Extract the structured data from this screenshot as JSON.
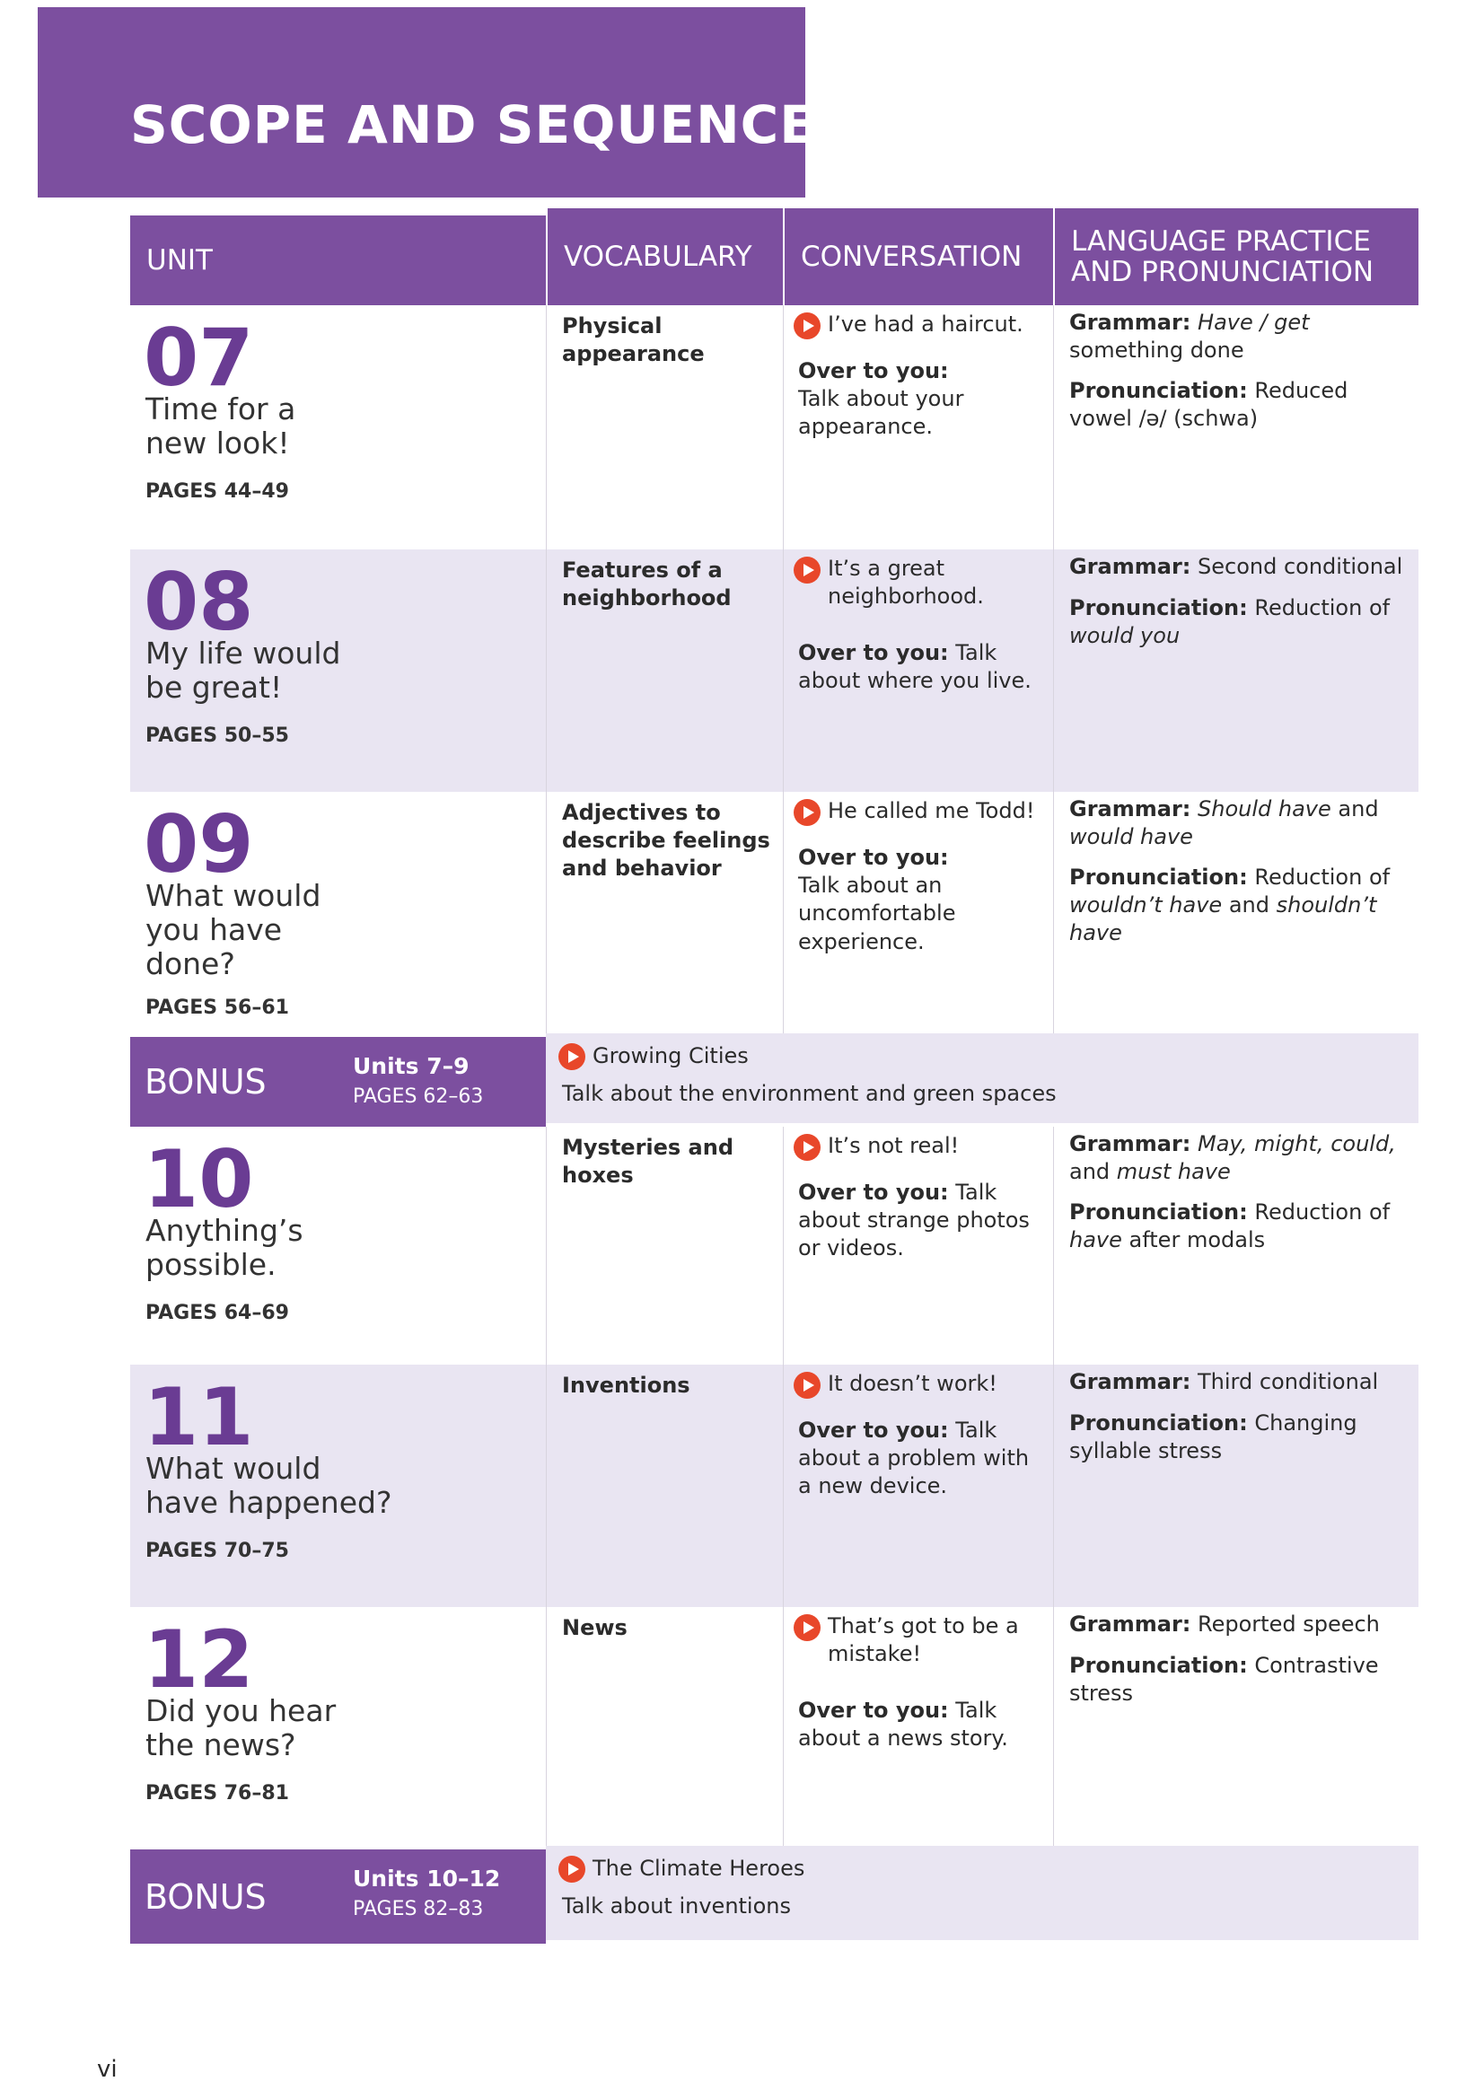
{
  "header": {
    "title": "SCOPE AND SEQUENCE"
  },
  "table": {
    "columns": [
      "UNIT",
      "VOCABULARY",
      "CONVERSATION",
      "LANGUAGE PRACTICE\nAND PRONUNCIATION"
    ],
    "rows": [
      {
        "number": "07",
        "title": "Time for a\nnew look!",
        "pages": "PAGES 44–49",
        "vocabulary": "Physical\nappearance",
        "conversation": "I’ve had a haircut.",
        "over_to_you": [
          "Over to you:",
          "Talk about your appearance."
        ],
        "grammar": [
          "Grammar:",
          "Have / get",
          "something done"
        ],
        "pronunciation": [
          "Pronunciation:",
          "Reduced vowel /ə/ (schwa)"
        ]
      },
      {
        "number": "08",
        "title": "My life would\nbe great!",
        "pages": "PAGES 50–55",
        "vocabulary": "Features of a\nneighborhood",
        "conversation": "It’s a great neighborhood.",
        "over_to_you": [
          "Over to you:",
          "Talk about where you live."
        ],
        "grammar": [
          "Grammar:",
          "Second conditional"
        ],
        "pronunciation": [
          "Pronunciation:",
          "Reduction of",
          "would you"
        ]
      },
      {
        "number": "09",
        "title": "What would\nyou have\ndone?",
        "pages": "PAGES 56–61",
        "vocabulary": "Adjectives to\ndescribe feelings\nand behavior",
        "conversation": "He called me Todd!",
        "over_to_you": [
          "Over to you:",
          "Talk about an uncomfortable experience."
        ],
        "grammar": [
          "Grammar:",
          "Should have",
          "and",
          "would have"
        ],
        "pronunciation": [
          "Pronunciation:",
          "Reduction of",
          "wouldn’t have",
          "and",
          "shouldn’t have"
        ]
      },
      {
        "bonus": "BONUS",
        "units": "Units 7–9",
        "pages": "PAGES 62–63",
        "video": "Growing Cities",
        "task": "Talk about the environment and green spaces"
      },
      {
        "number": "10",
        "title": "Anything’s\npossible.",
        "pages": "PAGES 64–69",
        "vocabulary": "Mysteries and\nhoxes",
        "conversation": "It’s not real!",
        "over_to_you": [
          "Over to you:",
          "Talk about strange photos or videos."
        ],
        "grammar": [
          "Grammar:",
          "May, might, could,",
          "and",
          "must have"
        ],
        "pronunciation": [
          "Pronunciation:",
          "Reduction of",
          "have",
          "after modals"
        ]
      },
      {
        "number": "11",
        "title": "What would\nhave happened?",
        "pages": "PAGES 70–75",
        "vocabulary": "Inventions",
        "conversation": "It doesn’t work!",
        "over_to_you": [
          "Over to you:",
          "Talk about a problem with a new device."
        ],
        "grammar": [
          "Grammar:",
          "Third conditional"
        ],
        "pronunciation": [
          "Pronunciation:",
          "Changing syllable stress"
        ]
      },
      {
        "number": "12",
        "title": "Did you hear\nthe news?",
        "pages": "PAGES 76–81",
        "vocabulary": "News",
        "conversation": "That’s got to be a mistake!",
        "over_to_you": [
          "Over to you:",
          "Talk about a news story."
        ],
        "grammar": [
          "Grammar:",
          "Reported speech"
        ],
        "pronunciation": [
          "Pronunciation:",
          "Contrastive stress"
        ]
      },
      {
        "bonus": "BONUS",
        "units": "Units 10–12",
        "pages": "PAGES 82–83",
        "video": "The Climate Heroes",
        "task": "Talk about inventions"
      }
    ]
  },
  "footer": {
    "page_number": "vi"
  }
}
